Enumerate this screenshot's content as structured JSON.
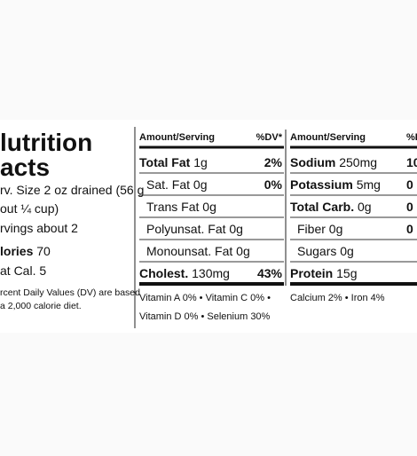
{
  "panel": {
    "title": [
      "lutrition",
      "acts"
    ],
    "serving": [
      "rv. Size 2 oz drained (56 g",
      "out ¼ cup)",
      "rvings about 2"
    ],
    "calories": {
      "label": "lories",
      "amount": "70"
    },
    "fat_calories": "at Cal. 5",
    "footnote": [
      "rcent Daily Values (DV) are based",
      "a 2,000 calorie diet."
    ]
  },
  "table1": {
    "header": {
      "amount": "Amount/Serving",
      "dv": "%DV*"
    },
    "rows": [
      {
        "name": "Total Fat",
        "amount": "1g",
        "dv": "2%",
        "bold": true
      },
      {
        "name": "Sat. Fat",
        "amount": "0g",
        "dv": "0%",
        "bold": false
      },
      {
        "name": "Trans Fat",
        "amount": "0g",
        "bold": false
      },
      {
        "name": "Polyunsat. Fat",
        "amount": "0g",
        "bold": false
      },
      {
        "name": "Monounsat. Fat",
        "amount": "0g",
        "bold": false
      },
      {
        "name": "Cholest.",
        "amount": "130mg",
        "dv": "43%",
        "bold": true
      }
    ],
    "vitamins": [
      "Vitamin A 0% • Vitamin C 0% •",
      "Vitamin D 0% • Selenium 30%"
    ]
  },
  "table2": {
    "header": {
      "amount": "Amount/Serving",
      "dv": "%D"
    },
    "rows": [
      {
        "name": "Sodium",
        "amount": "250mg",
        "dv": "10",
        "bold": true
      },
      {
        "name": "Potassium",
        "amount": "5mg",
        "dv": "0",
        "bold": true
      },
      {
        "name": "Total Carb.",
        "amount": "0g",
        "dv": "0",
        "bold": true
      },
      {
        "name": "Fiber",
        "amount": "0g",
        "dv": "0",
        "bold": false
      },
      {
        "name": "Sugars",
        "amount": "0g",
        "bold": false
      },
      {
        "name": "Protein",
        "amount": "15g",
        "bold": true
      }
    ],
    "vitamins": [
      "Calcium 2% • Iron 4%"
    ]
  }
}
